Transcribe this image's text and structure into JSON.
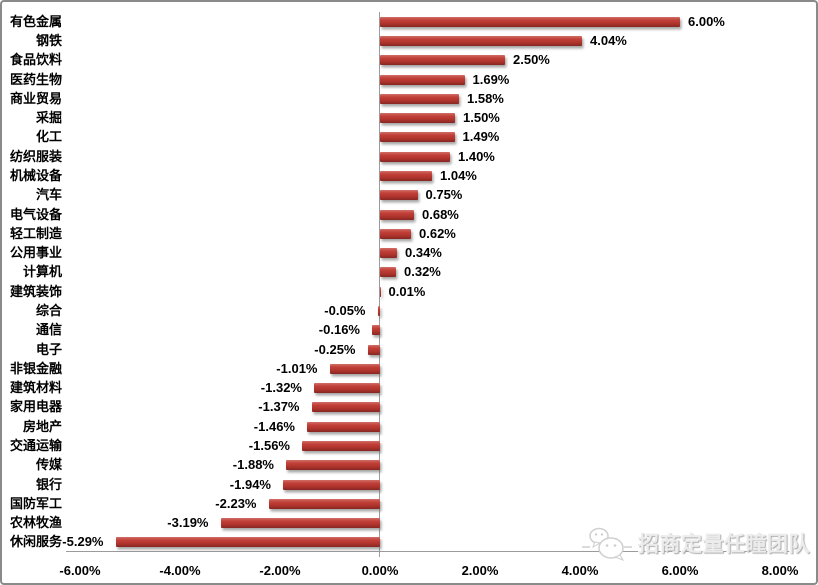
{
  "chart_data": {
    "type": "bar",
    "orientation": "horizontal",
    "title": "",
    "xlabel": "",
    "ylabel": "",
    "legend": "none",
    "grid": false,
    "bar_color": "#bf372f",
    "axis_color": "#9b9b9b",
    "xlim": [
      -6.25,
      8.25
    ],
    "categories": [
      "有色金属",
      "钢铁",
      "食品饮料",
      "医药生物",
      "商业贸易",
      "采掘",
      "化工",
      "纺织服装",
      "机械设备",
      "汽车",
      "电气设备",
      "轻工制造",
      "公用事业",
      "计算机",
      "建筑装饰",
      "综合",
      "通信",
      "电子",
      "非银金融",
      "建筑材料",
      "家用电器",
      "房地产",
      "交通运输",
      "传媒",
      "银行",
      "国防军工",
      "农林牧渔",
      "休闲服务"
    ],
    "values": [
      6.0,
      4.04,
      2.5,
      1.69,
      1.58,
      1.5,
      1.49,
      1.4,
      1.04,
      0.75,
      0.68,
      0.62,
      0.34,
      0.32,
      0.01,
      -0.05,
      -0.16,
      -0.25,
      -1.01,
      -1.32,
      -1.37,
      -1.46,
      -1.56,
      -1.88,
      -1.94,
      -2.23,
      -3.19,
      -5.29
    ],
    "value_labels": [
      "6.00%",
      "4.04%",
      "2.50%",
      "1.69%",
      "1.58%",
      "1.50%",
      "1.49%",
      "1.40%",
      "1.04%",
      "0.75%",
      "0.68%",
      "0.62%",
      "0.34%",
      "0.32%",
      "0.01%",
      "-0.05%",
      "-0.16%",
      "-0.25%",
      "-1.01%",
      "-1.32%",
      "-1.37%",
      "-1.46%",
      "-1.56%",
      "-1.88%",
      "-1.94%",
      "-2.23%",
      "-3.19%",
      "-5.29%"
    ],
    "x_ticks": [
      {
        "value": -6,
        "label": "-6.00%"
      },
      {
        "value": -4,
        "label": "-4.00%"
      },
      {
        "value": -2,
        "label": "-2.00%"
      },
      {
        "value": 0,
        "label": "0.00%"
      },
      {
        "value": 2,
        "label": "2.00%"
      },
      {
        "value": 4,
        "label": "4.00%"
      },
      {
        "value": 6,
        "label": "6.00%"
      },
      {
        "value": 8,
        "label": "8.00%"
      }
    ]
  },
  "watermark": {
    "text": "招商定量任瞳团队",
    "icon": "wechat-icon"
  }
}
